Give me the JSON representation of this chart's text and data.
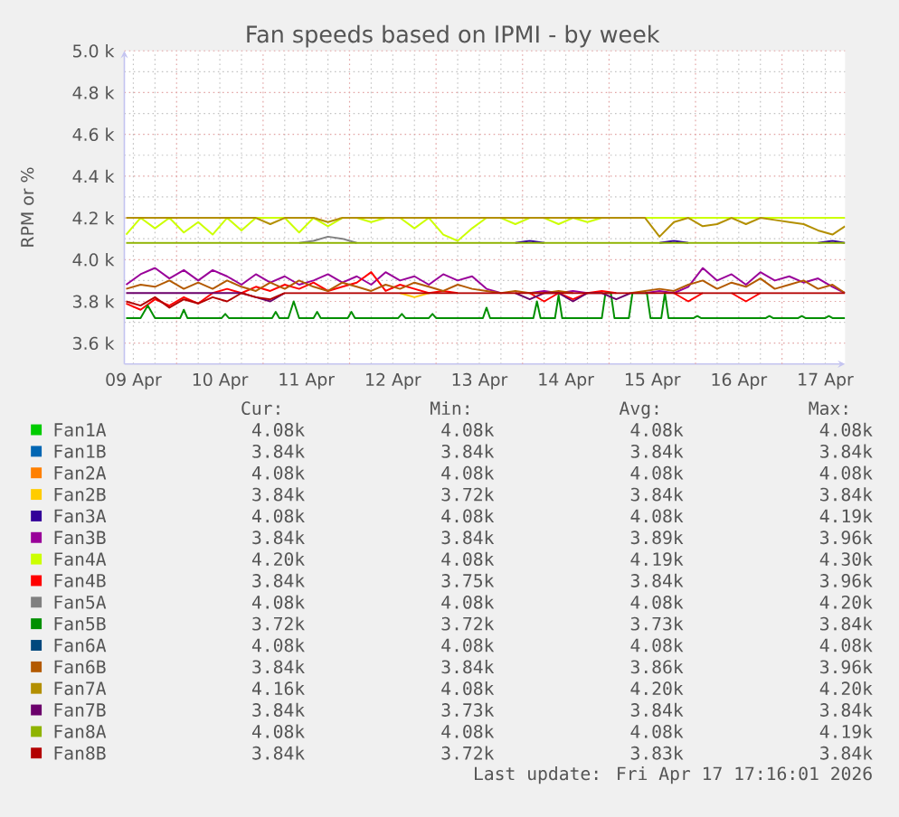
{
  "chart_data": {
    "type": "line",
    "title": "Fan speeds based on IPMI - by week",
    "ylabel": "RPM or %",
    "x": [
      "2026-04-09T10:00",
      "2026-04-09T14:00",
      "2026-04-09T18:00",
      "2026-04-09T22:00",
      "2026-04-10T02:00",
      "2026-04-10T06:00",
      "2026-04-10T10:00",
      "2026-04-10T14:00",
      "2026-04-10T18:00",
      "2026-04-10T22:00",
      "2026-04-11T02:00",
      "2026-04-11T06:00",
      "2026-04-11T10:00",
      "2026-04-11T14:00",
      "2026-04-11T18:00",
      "2026-04-11T22:00",
      "2026-04-12T02:00",
      "2026-04-12T06:00",
      "2026-04-12T10:00",
      "2026-04-12T14:00",
      "2026-04-12T18:00",
      "2026-04-12T22:00",
      "2026-04-13T02:00",
      "2026-04-13T06:00",
      "2026-04-13T10:00",
      "2026-04-13T14:00",
      "2026-04-13T18:00",
      "2026-04-13T22:00",
      "2026-04-14T02:00",
      "2026-04-14T06:00",
      "2026-04-14T10:00",
      "2026-04-14T14:00",
      "2026-04-14T18:00",
      "2026-04-14T22:00",
      "2026-04-15T02:00",
      "2026-04-15T06:00",
      "2026-04-15T10:00",
      "2026-04-15T14:00",
      "2026-04-15T18:00",
      "2026-04-15T22:00",
      "2026-04-16T02:00",
      "2026-04-16T06:00",
      "2026-04-16T10:00",
      "2026-04-16T14:00",
      "2026-04-16T18:00",
      "2026-04-16T22:00",
      "2026-04-17T02:00",
      "2026-04-17T06:00",
      "2026-04-17T10:00",
      "2026-04-17T14:00",
      "2026-04-17T17:30"
    ],
    "xlim": [
      "2026-04-09T09:30",
      "2026-04-17T17:30"
    ],
    "xticks": [
      {
        "value": "2026-04-09T12:00",
        "label": "09 Apr"
      },
      {
        "value": "2026-04-10T00:00",
        "label": null
      },
      {
        "value": "2026-04-10T12:00",
        "label": "10 Apr"
      },
      {
        "value": "2026-04-11T00:00",
        "label": null
      },
      {
        "value": "2026-04-11T12:00",
        "label": "11 Apr"
      },
      {
        "value": "2026-04-12T00:00",
        "label": null
      },
      {
        "value": "2026-04-12T12:00",
        "label": "12 Apr"
      },
      {
        "value": "2026-04-13T00:00",
        "label": null
      },
      {
        "value": "2026-04-13T12:00",
        "label": "13 Apr"
      },
      {
        "value": "2026-04-14T00:00",
        "label": null
      },
      {
        "value": "2026-04-14T12:00",
        "label": "14 Apr"
      },
      {
        "value": "2026-04-15T00:00",
        "label": null
      },
      {
        "value": "2026-04-15T12:00",
        "label": "15 Apr"
      },
      {
        "value": "2026-04-16T00:00",
        "label": null
      },
      {
        "value": "2026-04-16T12:00",
        "label": "16 Apr"
      },
      {
        "value": "2026-04-17T00:00",
        "label": null
      },
      {
        "value": "2026-04-17T12:00",
        "label": "17 Apr"
      }
    ],
    "ylim": [
      3500,
      5000
    ],
    "yticks": [
      {
        "value": 3600,
        "label": "3.6 k"
      },
      {
        "value": 3800,
        "label": "3.8 k"
      },
      {
        "value": 4000,
        "label": "4.0 k"
      },
      {
        "value": 4200,
        "label": "4.2 k"
      },
      {
        "value": 4400,
        "label": "4.4 k"
      },
      {
        "value": 4600,
        "label": "4.6 k"
      },
      {
        "value": 4800,
        "label": "4.8 k"
      },
      {
        "value": 5000,
        "label": "5.0 k"
      }
    ],
    "grid": true,
    "legend": "bottom",
    "series": [
      {
        "name": "Fan1A",
        "color": "#00cc00",
        "values": [
          null,
          null,
          null,
          null,
          null,
          null,
          null,
          null,
          null,
          null,
          null,
          null,
          null,
          null,
          null,
          null,
          null,
          null,
          null,
          null,
          null,
          null,
          null,
          null,
          null,
          null,
          null,
          null,
          null,
          null,
          null,
          null,
          null,
          null,
          null,
          null,
          null,
          null,
          null,
          null,
          null,
          null,
          null,
          null,
          null,
          null,
          null,
          null,
          null,
          null,
          null
        ]
      },
      {
        "name": "Fan1B",
        "color": "#0066b3",
        "values": [
          null,
          null,
          null,
          null,
          null,
          null,
          null,
          null,
          null,
          null,
          null,
          null,
          null,
          null,
          null,
          null,
          null,
          null,
          null,
          null,
          null,
          null,
          null,
          null,
          null,
          null,
          null,
          null,
          null,
          null,
          null,
          null,
          null,
          null,
          null,
          null,
          null,
          null,
          null,
          null,
          null,
          null,
          null,
          null,
          null,
          null,
          null,
          null,
          null,
          null,
          null
        ]
      },
      {
        "name": "Fan2A",
        "color": "#ff8000",
        "values": [
          null,
          null,
          null,
          null,
          null,
          null,
          null,
          null,
          null,
          null,
          null,
          null,
          null,
          null,
          null,
          null,
          null,
          null,
          null,
          null,
          null,
          null,
          null,
          null,
          null,
          null,
          null,
          null,
          null,
          null,
          null,
          null,
          null,
          null,
          null,
          null,
          null,
          null,
          null,
          null,
          null,
          null,
          null,
          null,
          null,
          null,
          null,
          null,
          null,
          null,
          null
        ]
      },
      {
        "name": "Fan2B",
        "color": "#ffcc00",
        "values": [
          null,
          null,
          null,
          null,
          null,
          null,
          null,
          null,
          null,
          null,
          null,
          null,
          null,
          null,
          null,
          null,
          null,
          null,
          null,
          3840,
          3820,
          3840,
          null,
          null,
          null,
          null,
          null,
          null,
          null,
          null,
          null,
          null,
          null,
          null,
          null,
          null,
          null,
          null,
          null,
          null,
          null,
          null,
          null,
          null,
          null,
          null,
          null,
          null,
          null,
          null,
          null
        ]
      },
      {
        "name": "Fan3A",
        "color": "#330099",
        "values": [
          null,
          null,
          null,
          null,
          null,
          null,
          null,
          null,
          null,
          null,
          null,
          null,
          null,
          null,
          null,
          null,
          null,
          null,
          null,
          null,
          null,
          null,
          null,
          null,
          null,
          null,
          null,
          4080,
          4090,
          4080,
          null,
          null,
          null,
          null,
          null,
          null,
          null,
          4080,
          4090,
          4080,
          null,
          null,
          null,
          null,
          null,
          null,
          null,
          null,
          4080,
          4090,
          4080
        ]
      },
      {
        "name": "Fan3B",
        "color": "#990099",
        "values": [
          3880,
          3930,
          3960,
          3910,
          3950,
          3900,
          3950,
          3920,
          3880,
          3930,
          3890,
          3920,
          3880,
          3900,
          3930,
          3890,
          3920,
          3880,
          3940,
          3900,
          3920,
          3880,
          3930,
          3900,
          3920,
          3860,
          3840,
          null,
          3840,
          3850,
          3840,
          3850,
          3840,
          null,
          null,
          null,
          3840,
          3850,
          3840,
          3870,
          3960,
          3900,
          3930,
          3880,
          3940,
          3900,
          3920,
          3890,
          3910,
          3870,
          3840
        ]
      },
      {
        "name": "Fan4A",
        "color": "#ccff00",
        "values": [
          4120,
          4200,
          4150,
          4200,
          4130,
          4180,
          4120,
          4200,
          4140,
          4200,
          4200,
          4200,
          4130,
          4200,
          4160,
          4200,
          4200,
          4180,
          4200,
          4200,
          4150,
          4200,
          4120,
          4090,
          4150,
          4200,
          4200,
          4170,
          4200,
          4200,
          4170,
          4200,
          4180,
          4200,
          null,
          null,
          4200,
          4200,
          4200,
          4200,
          4200,
          4200,
          4200,
          4200,
          4200,
          4200,
          4200,
          4200,
          4200,
          4200,
          4200
        ]
      },
      {
        "name": "Fan4B",
        "color": "#ff0000",
        "values": [
          3790,
          3760,
          3810,
          3780,
          3820,
          3790,
          3840,
          3860,
          3840,
          3870,
          3850,
          3880,
          3860,
          3890,
          3850,
          3870,
          3890,
          3940,
          3850,
          3880,
          3860,
          3840,
          3850,
          3840,
          null,
          null,
          null,
          null,
          3840,
          3800,
          3840,
          3810,
          3840,
          3850,
          3840,
          null,
          null,
          null,
          3840,
          3800,
          3840,
          null,
          3840,
          3800,
          3840,
          null,
          null,
          null,
          null,
          null,
          null
        ]
      },
      {
        "name": "Fan5A",
        "color": "#808080",
        "values": [
          null,
          null,
          null,
          null,
          null,
          null,
          null,
          null,
          null,
          null,
          null,
          null,
          4080,
          4090,
          4110,
          4100,
          4080,
          null,
          null,
          null,
          null,
          null,
          null,
          null,
          null,
          null,
          null,
          null,
          null,
          null,
          null,
          null,
          null,
          null,
          null,
          null,
          null,
          null,
          null,
          null,
          null,
          null,
          null,
          null,
          null,
          null,
          null,
          null,
          null,
          null,
          null
        ]
      },
      {
        "name": "Fan5B",
        "color": "#008f00",
        "x": [
          "2026-04-09T10:00",
          "2026-04-09T14:00",
          "2026-04-09T16:00",
          "2026-04-09T18:00",
          "2026-04-10T01:00",
          "2026-04-10T02:00",
          "2026-04-10T03:00",
          "2026-04-10T12:30",
          "2026-04-10T13:30",
          "2026-04-10T14:30",
          "2026-04-11T02:30",
          "2026-04-11T03:30",
          "2026-04-11T04:30",
          "2026-04-11T07:00",
          "2026-04-11T08:30",
          "2026-04-11T10:00",
          "2026-04-11T14:00",
          "2026-04-11T15:00",
          "2026-04-11T16:00",
          "2026-04-11T23:30",
          "2026-04-12T00:30",
          "2026-04-12T01:30",
          "2026-04-12T13:30",
          "2026-04-12T14:30",
          "2026-04-12T15:30",
          "2026-04-12T22:00",
          "2026-04-12T23:00",
          "2026-04-13T00:00",
          "2026-04-13T13:00",
          "2026-04-13T14:00",
          "2026-04-13T15:00",
          "2026-04-14T03:00",
          "2026-04-14T04:00",
          "2026-04-14T05:00",
          "2026-04-14T09:00",
          "2026-04-14T10:00",
          "2026-04-14T11:00",
          "2026-04-14T22:00",
          "2026-04-14T23:00",
          "2026-04-15T00:30",
          "2026-04-15T01:30",
          "2026-04-15T05:30",
          "2026-04-15T06:30",
          "2026-04-15T10:30",
          "2026-04-15T11:30",
          "2026-04-15T14:30",
          "2026-04-15T15:30",
          "2026-04-15T16:30",
          "2026-04-15T23:30",
          "2026-04-16T00:30",
          "2026-04-16T01:30",
          "2026-04-16T19:30",
          "2026-04-16T20:30",
          "2026-04-16T21:30",
          "2026-04-17T04:30",
          "2026-04-17T05:30",
          "2026-04-17T06:30",
          "2026-04-17T12:00",
          "2026-04-17T13:00",
          "2026-04-17T14:00",
          "2026-04-17T17:30"
        ],
        "values": [
          3720,
          3720,
          3780,
          3720,
          3720,
          3760,
          3720,
          3720,
          3740,
          3720,
          3720,
          3750,
          3720,
          3720,
          3800,
          3720,
          3720,
          3750,
          3720,
          3720,
          3750,
          3720,
          3720,
          3740,
          3720,
          3720,
          3740,
          3720,
          3720,
          3770,
          3720,
          3720,
          3800,
          3720,
          3720,
          3830,
          3720,
          3720,
          3840,
          3840,
          3720,
          3720,
          3840,
          3840,
          3720,
          3720,
          3840,
          3720,
          3720,
          3730,
          3720,
          3720,
          3730,
          3720,
          3720,
          3730,
          3720,
          3720,
          3730,
          3720,
          3720
        ]
      },
      {
        "name": "Fan6A",
        "color": "#00487d",
        "values": [
          null,
          null,
          null,
          null,
          null,
          null,
          null,
          null,
          null,
          null,
          null,
          null,
          null,
          null,
          null,
          null,
          null,
          null,
          null,
          null,
          null,
          null,
          null,
          null,
          null,
          null,
          null,
          null,
          null,
          null,
          null,
          null,
          null,
          null,
          null,
          null,
          null,
          null,
          null,
          null,
          null,
          null,
          null,
          null,
          null,
          null,
          null,
          null,
          null,
          null,
          null
        ]
      },
      {
        "name": "Fan6B",
        "color": "#b35a00",
        "values": [
          3860,
          3880,
          3870,
          3900,
          3860,
          3890,
          3860,
          3900,
          3870,
          3850,
          3890,
          3860,
          3900,
          3870,
          3850,
          3890,
          3870,
          3850,
          3880,
          3860,
          3890,
          3870,
          3850,
          3880,
          3860,
          3850,
          3840,
          3850,
          3840,
          3840,
          3850,
          3840,
          null,
          null,
          null,
          3840,
          3850,
          3860,
          3850,
          3880,
          3900,
          3860,
          3890,
          3870,
          3910,
          3860,
          3880,
          3900,
          3860,
          3880,
          3840
        ]
      },
      {
        "name": "Fan7A",
        "color": "#b38f00",
        "values": [
          4200,
          4200,
          4200,
          4200,
          4200,
          4200,
          4200,
          4200,
          4200,
          4200,
          4170,
          4200,
          4200,
          4200,
          4180,
          4200,
          4200,
          4200,
          4200,
          4200,
          4200,
          4200,
          4200,
          4200,
          4200,
          4200,
          4200,
          4200,
          4200,
          4200,
          4200,
          4200,
          4200,
          4200,
          4200,
          4200,
          4200,
          4110,
          4180,
          4200,
          4160,
          4170,
          4200,
          4170,
          4200,
          4190,
          4180,
          4170,
          4140,
          4120,
          4160
        ]
      },
      {
        "name": "Fan7B",
        "color": "#6b006b",
        "values": [
          3840,
          3840,
          3840,
          3840,
          3840,
          3840,
          3840,
          3840,
          3840,
          3820,
          3800,
          3840,
          null,
          null,
          null,
          null,
          null,
          null,
          null,
          null,
          null,
          null,
          null,
          null,
          null,
          null,
          null,
          3840,
          3810,
          3840,
          3840,
          3800,
          3840,
          3840,
          3810,
          3840,
          null,
          null,
          null,
          null,
          null,
          null,
          null,
          null,
          null,
          null,
          null,
          null,
          null,
          null,
          null
        ]
      },
      {
        "name": "Fan8A",
        "color": "#8fb300",
        "x": [
          "2026-04-09T10:00",
          "2026-04-17T17:30"
        ],
        "values": [
          4080,
          4080
        ]
      },
      {
        "name": "Fan8B",
        "color": "#b30000",
        "values": [
          3800,
          3780,
          3820,
          3770,
          3810,
          3790,
          3820,
          3800,
          3840,
          3820,
          3810,
          3840,
          3840,
          3840,
          3840,
          3840,
          3840,
          3840,
          3840,
          3840,
          3840,
          3840,
          3840,
          3840,
          3840,
          3840,
          3840,
          3840,
          3840,
          3840,
          3840,
          3840,
          3840,
          3840,
          3840,
          3840,
          3840,
          3840,
          3840,
          3840,
          3840,
          3840,
          3840,
          3840,
          3840,
          3840,
          3840,
          3840,
          3840,
          3840,
          3840
        ]
      }
    ],
    "annotations": [
      "Cur:",
      "Min:",
      "Avg:",
      "Max:",
      "4.08k",
      "4.08k",
      "4.08k",
      "4.08k",
      "3.84k",
      "3.84k",
      "3.84k",
      "3.84k",
      "4.08k",
      "4.08k",
      "4.08k",
      "4.08k",
      "3.84k",
      "3.72k",
      "3.84k",
      "3.84k",
      "4.08k",
      "4.08k",
      "4.08k",
      "4.19k",
      "3.84k",
      "3.84k",
      "3.89k",
      "3.96k",
      "4.20k",
      "4.08k",
      "4.19k",
      "4.30k",
      "3.84k",
      "3.75k",
      "3.84k",
      "3.96k",
      "4.08k",
      "4.08k",
      "4.08k",
      "4.20k",
      "3.72k",
      "3.72k",
      "3.73k",
      "3.84k",
      "4.08k",
      "4.08k",
      "4.08k",
      "4.08k",
      "3.84k",
      "3.84k",
      "3.86k",
      "3.96k",
      "4.16k",
      "4.08k",
      "4.20k",
      "4.20k",
      "3.84k",
      "3.73k",
      "3.84k",
      "3.84k",
      "4.08k",
      "4.08k",
      "4.08k",
      "4.19k",
      "3.84k",
      "3.72k",
      "3.83k",
      "3.84k",
      "Last update: Fri Apr 17 17:16:01 2026"
    ]
  }
}
